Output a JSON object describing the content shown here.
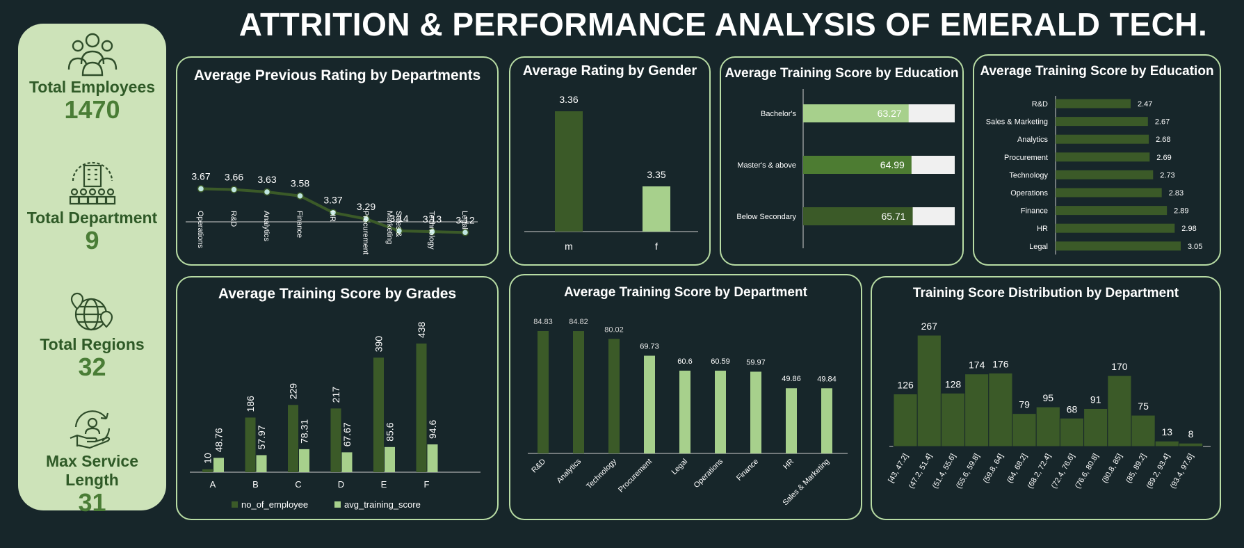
{
  "header": {
    "title": "ATTRITION & PERFORMANCE ANALYSIS OF EMERALD TECH."
  },
  "kpis": [
    {
      "label": "Total Employees",
      "value": "1470",
      "icon": "team-icon"
    },
    {
      "label": "Total Department",
      "value": "9",
      "icon": "building-icon"
    },
    {
      "label": "Total Regions",
      "value": "32",
      "icon": "globe-pin-icon"
    },
    {
      "label": "Max Service Length",
      "value": "31",
      "icon": "service-cycle-icon"
    }
  ],
  "colors": {
    "dark": "#3b5a28",
    "light": "#a7d08c",
    "panel_border": "#b8dca4",
    "bg": "#17262a",
    "track": "#f0f0f0"
  },
  "chart_data": [
    {
      "id": "prev-rating-dept",
      "type": "line",
      "title": "Average Previous Rating by Departments",
      "categories": [
        "Operations",
        "R&D",
        "Analytics",
        "Finance",
        "HR",
        "Procurement",
        "Sales & Marketing",
        "Technology",
        "Legal"
      ],
      "values": [
        3.67,
        3.66,
        3.63,
        3.58,
        3.37,
        3.29,
        3.14,
        3.13,
        3.12
      ],
      "labels": [
        "3.67",
        "3.66",
        "3.63",
        "3.58",
        "3.37",
        "3.29",
        "3.14",
        "3.13",
        "3.12"
      ],
      "ylim": [
        2.5,
        4.0
      ]
    },
    {
      "id": "rating-gender",
      "type": "bar",
      "title": "Average Rating by Gender",
      "categories": [
        "m",
        "f"
      ],
      "values": [
        3.36,
        3.35
      ],
      "labels": [
        "3.36",
        "3.35"
      ]
    },
    {
      "id": "training-education",
      "type": "bar",
      "title": "Average Training Score by Education",
      "categories": [
        "Bachelor's",
        "Master's & above",
        "Below Secondary"
      ],
      "values": [
        63.27,
        64.99,
        65.71
      ],
      "labels": [
        "63.27",
        "64.99",
        "65.71"
      ],
      "xlim": [
        0,
        100
      ]
    },
    {
      "id": "training-education-2",
      "type": "bar",
      "title": "Average Training Score by Education",
      "categories": [
        "R&D",
        "Sales & Marketing",
        "Analytics",
        "Procurement",
        "Technology",
        "Operations",
        "Finance",
        "HR",
        "Legal"
      ],
      "values": [
        2.47,
        2.67,
        2.68,
        2.69,
        2.73,
        2.83,
        2.89,
        2.98,
        3.05
      ],
      "labels": [
        "2.47",
        "2.67",
        "2.68",
        "2.69",
        "2.73",
        "2.83",
        "2.89",
        "2.98",
        "3.05"
      ]
    },
    {
      "id": "training-grades",
      "type": "bar",
      "title": "Average Training Score by Grades",
      "categories": [
        "A",
        "B",
        "C",
        "D",
        "E",
        "F"
      ],
      "series": [
        {
          "name": "no_of_employee",
          "values": [
            10,
            186,
            229,
            217,
            390,
            438
          ],
          "labels": [
            "10",
            "186",
            "229",
            "217",
            "390",
            "438"
          ]
        },
        {
          "name": "avg_training_score",
          "values": [
            48.76,
            57.97,
            78.31,
            67.67,
            85.6,
            94.6
          ],
          "labels": [
            "48.76",
            "57.97",
            "78.31",
            "67.67",
            "85.6",
            "94.6"
          ]
        }
      ]
    },
    {
      "id": "training-dept",
      "type": "bar",
      "title": "Average Training Score by Department",
      "categories": [
        "R&D",
        "Analytics",
        "Technology",
        "Procurement",
        "Legal",
        "Operations",
        "Finance",
        "HR",
        "Sales & Marketing"
      ],
      "values": [
        84.83,
        84.82,
        80.02,
        69.73,
        60.6,
        60.59,
        59.97,
        49.86,
        49.84
      ],
      "labels": [
        "84.83",
        "84.82",
        "80.02",
        "69.73",
        "60.6",
        "60.59",
        "59.97",
        "49.86",
        "49.84"
      ],
      "highlight_top": 3
    },
    {
      "id": "training-dist",
      "type": "bar",
      "title": "Training Score Distribution by Department",
      "categories": [
        "[43, 47.2]",
        "(47.2, 51.4]",
        "(51.4, 55.6]",
        "(55.6, 59.8]",
        "(59.8, 64]",
        "(64, 68.2]",
        "(68.2, 72.4]",
        "(72.4, 76.6]",
        "(76.6, 80.8]",
        "(80.8, 85]",
        "(85, 89.2]",
        "(89.2, 93.4]",
        "(93.4, 97.6]"
      ],
      "values": [
        126,
        267,
        128,
        174,
        176,
        79,
        95,
        68,
        91,
        170,
        75,
        13,
        8
      ],
      "labels": [
        "126",
        "267",
        "128",
        "174",
        "176",
        "79",
        "95",
        "68",
        "91",
        "170",
        "75",
        "13",
        "8"
      ]
    }
  ]
}
